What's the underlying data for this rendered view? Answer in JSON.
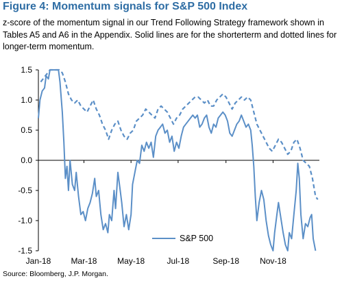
{
  "header": {
    "title": "Figure 4: Momentum signals for S&P 500 Index",
    "subtitle": "z-score of the momentum signal in our Trend Following Strategy framework shown in Tables A5 and A6 in the Appendix. Solid lines are for the shorterterm and dotted lines for longer-term momentum."
  },
  "footer": {
    "source": "Source: Bloomberg, J.P. Morgan."
  },
  "chart_data": {
    "type": "line",
    "title": "",
    "xlabel": "",
    "ylabel": "",
    "ylim": [
      -1.5,
      1.5
    ],
    "yticks": [
      1.5,
      1.0,
      0.5,
      0.0,
      -0.5,
      -1.0,
      -1.5
    ],
    "ytick_labels": [
      "1.5",
      "1.0",
      "0.5",
      "0.0",
      "-0.5",
      "-1.0",
      "-1.5"
    ],
    "xlim": [
      "2018-01-01",
      "2018-12-31"
    ],
    "xticks": [
      "2018-01-01",
      "2018-03-01",
      "2018-05-01",
      "2018-07-01",
      "2018-09-01",
      "2018-11-01"
    ],
    "xtick_labels": [
      "Jan-18",
      "Mar-18",
      "May-18",
      "Jul-18",
      "Sep-18",
      "Nov-18"
    ],
    "grid": false,
    "legend": {
      "position": "bottom-center",
      "entries": [
        "S&P 500"
      ]
    },
    "colors": {
      "series": "#5b8fc7",
      "axis": "#000000"
    },
    "series": [
      {
        "name": "S&P 500",
        "style": "solid",
        "points": [
          [
            "2018-01-01",
            0.7
          ],
          [
            "2018-01-03",
            1.0
          ],
          [
            "2018-01-06",
            1.15
          ],
          [
            "2018-01-09",
            1.2
          ],
          [
            "2018-01-11",
            1.4
          ],
          [
            "2018-01-14",
            1.35
          ],
          [
            "2018-01-16",
            1.5
          ],
          [
            "2018-01-18",
            1.5
          ],
          [
            "2018-01-21",
            1.5
          ],
          [
            "2018-01-24",
            1.5
          ],
          [
            "2018-01-27",
            1.5
          ],
          [
            "2018-01-29",
            1.3
          ],
          [
            "2018-02-01",
            0.8
          ],
          [
            "2018-02-03",
            0.3
          ],
          [
            "2018-02-05",
            -0.3
          ],
          [
            "2018-02-07",
            -0.1
          ],
          [
            "2018-02-09",
            -0.5
          ],
          [
            "2018-02-11",
            0.0
          ],
          [
            "2018-02-14",
            -0.4
          ],
          [
            "2018-02-17",
            -0.5
          ],
          [
            "2018-02-19",
            -0.2
          ],
          [
            "2018-02-22",
            -0.6
          ],
          [
            "2018-02-25",
            -0.9
          ],
          [
            "2018-02-28",
            -0.85
          ],
          [
            "2018-03-03",
            -1.0
          ],
          [
            "2018-03-06",
            -0.8
          ],
          [
            "2018-03-09",
            -0.7
          ],
          [
            "2018-03-12",
            -0.55
          ],
          [
            "2018-03-15",
            -0.3
          ],
          [
            "2018-03-17",
            -0.6
          ],
          [
            "2018-03-20",
            -0.5
          ],
          [
            "2018-03-23",
            -0.9
          ],
          [
            "2018-03-26",
            -1.15
          ],
          [
            "2018-03-29",
            -1.05
          ],
          [
            "2018-04-01",
            -1.2
          ],
          [
            "2018-04-03",
            -0.9
          ],
          [
            "2018-04-06",
            -1.0
          ],
          [
            "2018-04-09",
            -0.5
          ],
          [
            "2018-04-11",
            -0.8
          ],
          [
            "2018-04-14",
            -0.2
          ],
          [
            "2018-04-17",
            -0.5
          ],
          [
            "2018-04-19",
            -0.7
          ],
          [
            "2018-04-22",
            -1.1
          ],
          [
            "2018-04-25",
            -0.9
          ],
          [
            "2018-04-28",
            -1.15
          ],
          [
            "2018-05-01",
            -0.9
          ],
          [
            "2018-05-03",
            -0.4
          ],
          [
            "2018-05-06",
            -0.2
          ],
          [
            "2018-05-09",
            0.0
          ],
          [
            "2018-05-12",
            -0.05
          ],
          [
            "2018-05-15",
            0.25
          ],
          [
            "2018-05-18",
            0.15
          ],
          [
            "2018-05-21",
            0.3
          ],
          [
            "2018-05-24",
            0.2
          ],
          [
            "2018-05-27",
            0.3
          ],
          [
            "2018-05-30",
            0.05
          ],
          [
            "2018-06-02",
            0.4
          ],
          [
            "2018-06-05",
            0.5
          ],
          [
            "2018-06-08",
            0.55
          ],
          [
            "2018-06-11",
            0.6
          ],
          [
            "2018-06-14",
            0.45
          ],
          [
            "2018-06-17",
            0.5
          ],
          [
            "2018-06-20",
            0.3
          ],
          [
            "2018-06-23",
            0.4
          ],
          [
            "2018-06-26",
            0.15
          ],
          [
            "2018-06-29",
            0.3
          ],
          [
            "2018-07-02",
            0.2
          ],
          [
            "2018-07-05",
            0.4
          ],
          [
            "2018-07-08",
            0.55
          ],
          [
            "2018-07-11",
            0.6
          ],
          [
            "2018-07-14",
            0.65
          ],
          [
            "2018-07-17",
            0.7
          ],
          [
            "2018-07-20",
            0.75
          ],
          [
            "2018-07-23",
            0.7
          ],
          [
            "2018-07-26",
            0.75
          ],
          [
            "2018-07-29",
            0.55
          ],
          [
            "2018-08-01",
            0.6
          ],
          [
            "2018-08-04",
            0.7
          ],
          [
            "2018-08-07",
            0.75
          ],
          [
            "2018-08-10",
            0.55
          ],
          [
            "2018-08-13",
            0.45
          ],
          [
            "2018-08-16",
            0.6
          ],
          [
            "2018-08-19",
            0.55
          ],
          [
            "2018-08-22",
            0.7
          ],
          [
            "2018-08-25",
            0.75
          ],
          [
            "2018-08-28",
            0.8
          ],
          [
            "2018-08-31",
            0.75
          ],
          [
            "2018-09-03",
            0.65
          ],
          [
            "2018-09-06",
            0.45
          ],
          [
            "2018-09-09",
            0.4
          ],
          [
            "2018-09-12",
            0.5
          ],
          [
            "2018-09-15",
            0.6
          ],
          [
            "2018-09-18",
            0.65
          ],
          [
            "2018-09-21",
            0.75
          ],
          [
            "2018-09-24",
            0.65
          ],
          [
            "2018-09-27",
            0.55
          ],
          [
            "2018-09-30",
            0.6
          ],
          [
            "2018-10-03",
            0.5
          ],
          [
            "2018-10-05",
            0.25
          ],
          [
            "2018-10-07",
            -0.1
          ],
          [
            "2018-10-09",
            -0.6
          ],
          [
            "2018-10-11",
            -1.0
          ],
          [
            "2018-10-14",
            -0.7
          ],
          [
            "2018-10-17",
            -0.5
          ],
          [
            "2018-10-20",
            -0.65
          ],
          [
            "2018-10-23",
            -1.0
          ],
          [
            "2018-10-26",
            -1.25
          ],
          [
            "2018-10-29",
            -1.4
          ],
          [
            "2018-11-01",
            -1.5
          ],
          [
            "2018-11-03",
            -1.2
          ],
          [
            "2018-11-06",
            -0.9
          ],
          [
            "2018-11-08",
            -0.7
          ],
          [
            "2018-11-11",
            -0.95
          ],
          [
            "2018-11-14",
            -1.2
          ],
          [
            "2018-11-17",
            -1.4
          ],
          [
            "2018-11-20",
            -1.5
          ],
          [
            "2018-11-22",
            -1.2
          ],
          [
            "2018-11-25",
            -1.3
          ],
          [
            "2018-11-28",
            -0.9
          ],
          [
            "2018-12-01",
            -0.5
          ],
          [
            "2018-12-03",
            -0.05
          ],
          [
            "2018-12-05",
            -0.3
          ],
          [
            "2018-12-07",
            -0.9
          ],
          [
            "2018-12-10",
            -1.3
          ],
          [
            "2018-12-13",
            -1.05
          ],
          [
            "2018-12-16",
            -1.1
          ],
          [
            "2018-12-19",
            -0.95
          ],
          [
            "2018-12-21",
            -0.9
          ],
          [
            "2018-12-23",
            -1.3
          ],
          [
            "2018-12-26",
            -1.5
          ]
        ]
      },
      {
        "name": "",
        "style": "dashed",
        "points": [
          [
            "2018-01-04",
            1.3
          ],
          [
            "2018-01-07",
            1.35
          ],
          [
            "2018-01-10",
            1.4
          ],
          [
            "2018-01-13",
            1.45
          ],
          [
            "2018-01-16",
            1.5
          ],
          [
            "2018-01-20",
            1.5
          ],
          [
            "2018-01-24",
            1.5
          ],
          [
            "2018-01-28",
            1.5
          ],
          [
            "2018-02-01",
            1.45
          ],
          [
            "2018-02-05",
            1.3
          ],
          [
            "2018-02-09",
            1.1
          ],
          [
            "2018-02-13",
            1.0
          ],
          [
            "2018-02-17",
            0.95
          ],
          [
            "2018-02-21",
            1.0
          ],
          [
            "2018-02-25",
            0.9
          ],
          [
            "2018-03-01",
            0.85
          ],
          [
            "2018-03-05",
            0.8
          ],
          [
            "2018-03-09",
            0.9
          ],
          [
            "2018-03-13",
            1.0
          ],
          [
            "2018-03-17",
            0.85
          ],
          [
            "2018-03-21",
            0.75
          ],
          [
            "2018-03-25",
            0.6
          ],
          [
            "2018-03-29",
            0.5
          ],
          [
            "2018-04-02",
            0.35
          ],
          [
            "2018-04-06",
            0.5
          ],
          [
            "2018-04-10",
            0.6
          ],
          [
            "2018-04-14",
            0.65
          ],
          [
            "2018-04-18",
            0.5
          ],
          [
            "2018-04-22",
            0.4
          ],
          [
            "2018-04-26",
            0.35
          ],
          [
            "2018-04-30",
            0.45
          ],
          [
            "2018-05-04",
            0.5
          ],
          [
            "2018-05-08",
            0.65
          ],
          [
            "2018-05-12",
            0.7
          ],
          [
            "2018-05-16",
            0.75
          ],
          [
            "2018-05-20",
            0.85
          ],
          [
            "2018-05-24",
            0.8
          ],
          [
            "2018-05-28",
            0.75
          ],
          [
            "2018-06-01",
            0.7
          ],
          [
            "2018-06-05",
            0.85
          ],
          [
            "2018-06-09",
            0.9
          ],
          [
            "2018-06-13",
            0.85
          ],
          [
            "2018-06-17",
            0.8
          ],
          [
            "2018-06-21",
            0.7
          ],
          [
            "2018-06-25",
            0.6
          ],
          [
            "2018-06-29",
            0.7
          ],
          [
            "2018-07-03",
            0.75
          ],
          [
            "2018-07-07",
            0.85
          ],
          [
            "2018-07-11",
            0.9
          ],
          [
            "2018-07-15",
            0.95
          ],
          [
            "2018-07-19",
            1.0
          ],
          [
            "2018-07-23",
            1.05
          ],
          [
            "2018-07-27",
            1.05
          ],
          [
            "2018-07-31",
            1.0
          ],
          [
            "2018-08-04",
            0.95
          ],
          [
            "2018-08-08",
            1.0
          ],
          [
            "2018-08-12",
            0.9
          ],
          [
            "2018-08-16",
            0.9
          ],
          [
            "2018-08-20",
            1.0
          ],
          [
            "2018-08-24",
            1.05
          ],
          [
            "2018-08-28",
            1.1
          ],
          [
            "2018-09-01",
            1.05
          ],
          [
            "2018-09-05",
            0.95
          ],
          [
            "2018-09-09",
            0.85
          ],
          [
            "2018-09-13",
            0.95
          ],
          [
            "2018-09-17",
            1.0
          ],
          [
            "2018-09-21",
            1.05
          ],
          [
            "2018-09-25",
            1.0
          ],
          [
            "2018-09-29",
            1.05
          ],
          [
            "2018-10-03",
            1.0
          ],
          [
            "2018-10-07",
            0.8
          ],
          [
            "2018-10-11",
            0.6
          ],
          [
            "2018-10-15",
            0.5
          ],
          [
            "2018-10-19",
            0.4
          ],
          [
            "2018-10-23",
            0.3
          ],
          [
            "2018-10-27",
            0.2
          ],
          [
            "2018-10-31",
            0.15
          ],
          [
            "2018-11-04",
            0.25
          ],
          [
            "2018-11-08",
            0.35
          ],
          [
            "2018-11-12",
            0.3
          ],
          [
            "2018-11-16",
            0.2
          ],
          [
            "2018-11-20",
            0.1
          ],
          [
            "2018-11-24",
            0.15
          ],
          [
            "2018-11-28",
            0.3
          ],
          [
            "2018-12-02",
            0.35
          ],
          [
            "2018-12-06",
            0.2
          ],
          [
            "2018-12-10",
            0.0
          ],
          [
            "2018-12-14",
            -0.05
          ],
          [
            "2018-12-18",
            -0.1
          ],
          [
            "2018-12-22",
            -0.3
          ],
          [
            "2018-12-26",
            -0.6
          ],
          [
            "2018-12-29",
            -0.65
          ]
        ]
      }
    ]
  }
}
